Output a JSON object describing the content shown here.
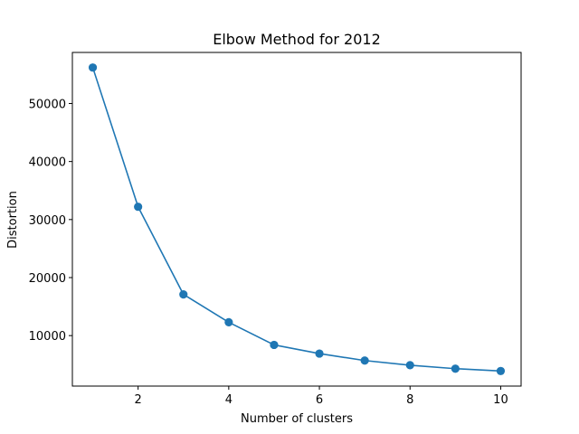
{
  "chart_data": {
    "type": "line",
    "title": "Elbow Method for 2012",
    "xlabel": "Number of clusters",
    "ylabel": "Distortion",
    "x": [
      1,
      2,
      3,
      4,
      5,
      6,
      7,
      8,
      9,
      10
    ],
    "series": [
      {
        "values": [
          56200,
          32200,
          17100,
          12300,
          8400,
          6900,
          5700,
          4900,
          4300,
          3900
        ],
        "color": "#1f77b4",
        "marker": "circle"
      }
    ],
    "xlim": [
      0.55,
      10.45
    ],
    "ylim": [
      1300,
      58800
    ],
    "xticks": [
      2,
      4,
      6,
      8,
      10
    ],
    "yticks": [
      10000,
      20000,
      30000,
      40000,
      50000
    ],
    "grid": false,
    "legend": "none"
  }
}
